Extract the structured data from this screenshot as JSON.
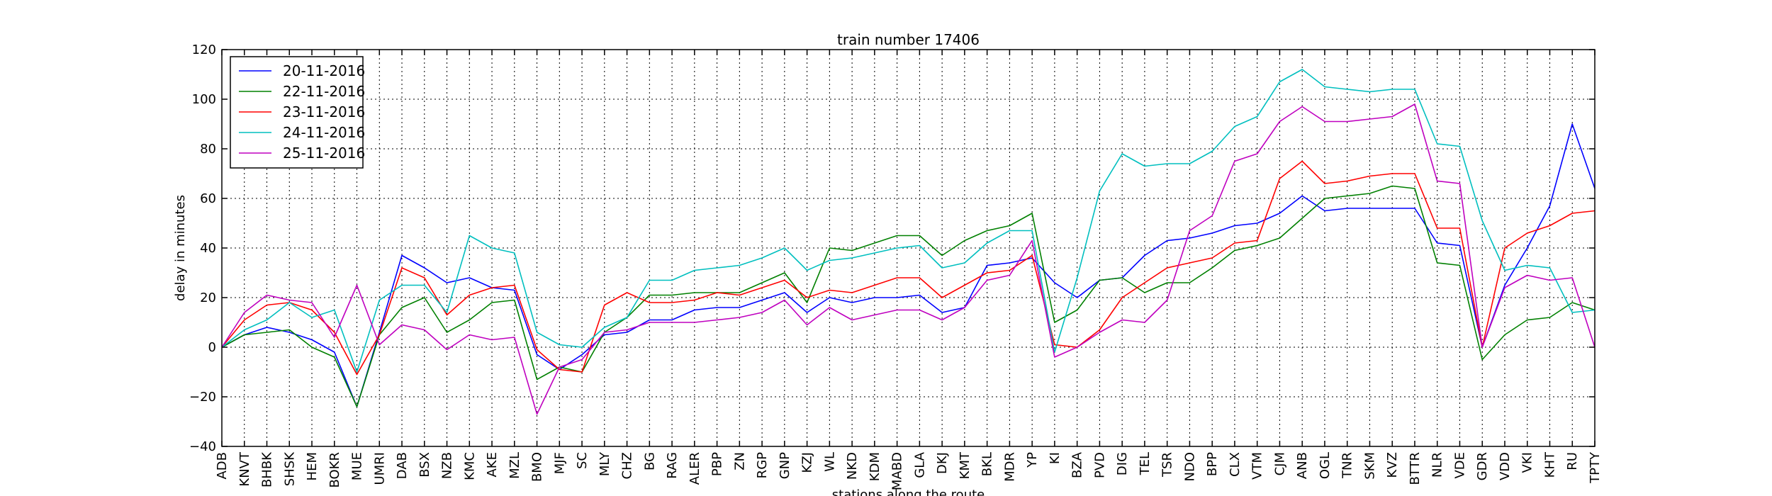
{
  "chart_data": {
    "type": "line",
    "title": "train number 17406",
    "xlabel": "stations along the route",
    "ylabel": "delay in minutes",
    "ylim": [
      -40,
      120
    ],
    "yticks": [
      -40,
      -20,
      0,
      20,
      40,
      60,
      80,
      100,
      120
    ],
    "grid": true,
    "legend_position": "top-left",
    "categories": [
      "ADB",
      "KNVT",
      "BHBK",
      "SHSK",
      "HEM",
      "BOKR",
      "MUE",
      "UMRI",
      "DAB",
      "BSX",
      "NZB",
      "KMC",
      "AKE",
      "MZL",
      "BMO",
      "MJF",
      "SC",
      "MLY",
      "CHZ",
      "BG",
      "RAG",
      "ALER",
      "PBP",
      "ZN",
      "RGP",
      "GNP",
      "KZJ",
      "WL",
      "NKD",
      "KDM",
      "MABD",
      "GLA",
      "DKJ",
      "KMT",
      "BKL",
      "MDR",
      "YP",
      "KI",
      "BZA",
      "PVD",
      "DIG",
      "TEL",
      "TSR",
      "NDO",
      "BPP",
      "CLX",
      "VTM",
      "CJM",
      "ANB",
      "OGL",
      "TNR",
      "SKM",
      "KVZ",
      "BTTR",
      "NLR",
      "VDE",
      "GDR",
      "VDD",
      "VKI",
      "KHT",
      "RU",
      "TPTY"
    ],
    "series": [
      {
        "name": "20-11-2016",
        "color": "#0000ff",
        "values": [
          0,
          5,
          8,
          6,
          3,
          -2,
          -24,
          6,
          37,
          32,
          26,
          28,
          24,
          23,
          -3,
          -9,
          -3,
          5,
          6,
          11,
          11,
          15,
          16,
          16,
          19,
          22,
          14,
          20,
          18,
          20,
          20,
          21,
          14,
          16,
          33,
          34,
          36,
          26,
          20,
          27,
          28,
          37,
          43,
          44,
          46,
          49,
          50,
          54,
          61,
          55,
          56,
          56,
          56,
          56,
          42,
          41,
          0,
          25,
          40,
          57,
          90,
          64
        ]
      },
      {
        "name": "22-11-2016",
        "color": "#008000",
        "values": [
          0,
          5,
          6,
          7,
          0,
          -4,
          -24,
          5,
          16,
          20,
          6,
          11,
          18,
          19,
          -13,
          -8,
          -10,
          6,
          12,
          21,
          21,
          22,
          22,
          22,
          26,
          30,
          18,
          40,
          39,
          42,
          45,
          45,
          37,
          43,
          47,
          49,
          54,
          10,
          15,
          27,
          28,
          22,
          26,
          26,
          32,
          39,
          41,
          44,
          52,
          60,
          61,
          62,
          65,
          64,
          34,
          33,
          -5,
          5,
          11,
          12,
          18,
          15
        ]
      },
      {
        "name": "23-11-2016",
        "color": "#ff0000",
        "values": [
          0,
          11,
          17,
          18,
          15,
          6,
          -11,
          5,
          32,
          28,
          13,
          21,
          24,
          25,
          -1,
          -9,
          -10,
          17,
          22,
          18,
          18,
          19,
          22,
          21,
          24,
          27,
          20,
          23,
          22,
          25,
          28,
          28,
          20,
          25,
          30,
          31,
          37,
          1,
          0,
          7,
          20,
          26,
          32,
          34,
          36,
          42,
          43,
          68,
          75,
          66,
          67,
          69,
          70,
          70,
          48,
          48,
          0,
          40,
          46,
          49,
          54,
          55
        ]
      },
      {
        "name": "24-11-2016",
        "color": "#00bfbf",
        "values": [
          0,
          7,
          11,
          18,
          12,
          15,
          -10,
          19,
          25,
          25,
          14,
          45,
          40,
          38,
          6,
          1,
          0,
          8,
          12,
          27,
          27,
          31,
          32,
          33,
          36,
          40,
          31,
          35,
          36,
          38,
          40,
          41,
          32,
          34,
          42,
          47,
          47,
          -2,
          28,
          63,
          78,
          73,
          74,
          74,
          79,
          89,
          93,
          107,
          112,
          105,
          104,
          103,
          104,
          104,
          82,
          81,
          51,
          31,
          33,
          32,
          14,
          15
        ]
      },
      {
        "name": "25-11-2016",
        "color": "#bf00bf",
        "values": [
          0,
          14,
          21,
          19,
          18,
          4,
          25,
          1,
          9,
          7,
          -1,
          5,
          3,
          4,
          -27,
          -8,
          -5,
          6,
          7,
          10,
          10,
          10,
          11,
          12,
          14,
          19,
          9,
          16,
          11,
          13,
          15,
          15,
          11,
          16,
          27,
          29,
          43,
          -4,
          0,
          6,
          11,
          10,
          19,
          47,
          53,
          75,
          78,
          91,
          97,
          91,
          91,
          92,
          93,
          98,
          67,
          66,
          0,
          24,
          29,
          27,
          28,
          0
        ]
      }
    ]
  }
}
